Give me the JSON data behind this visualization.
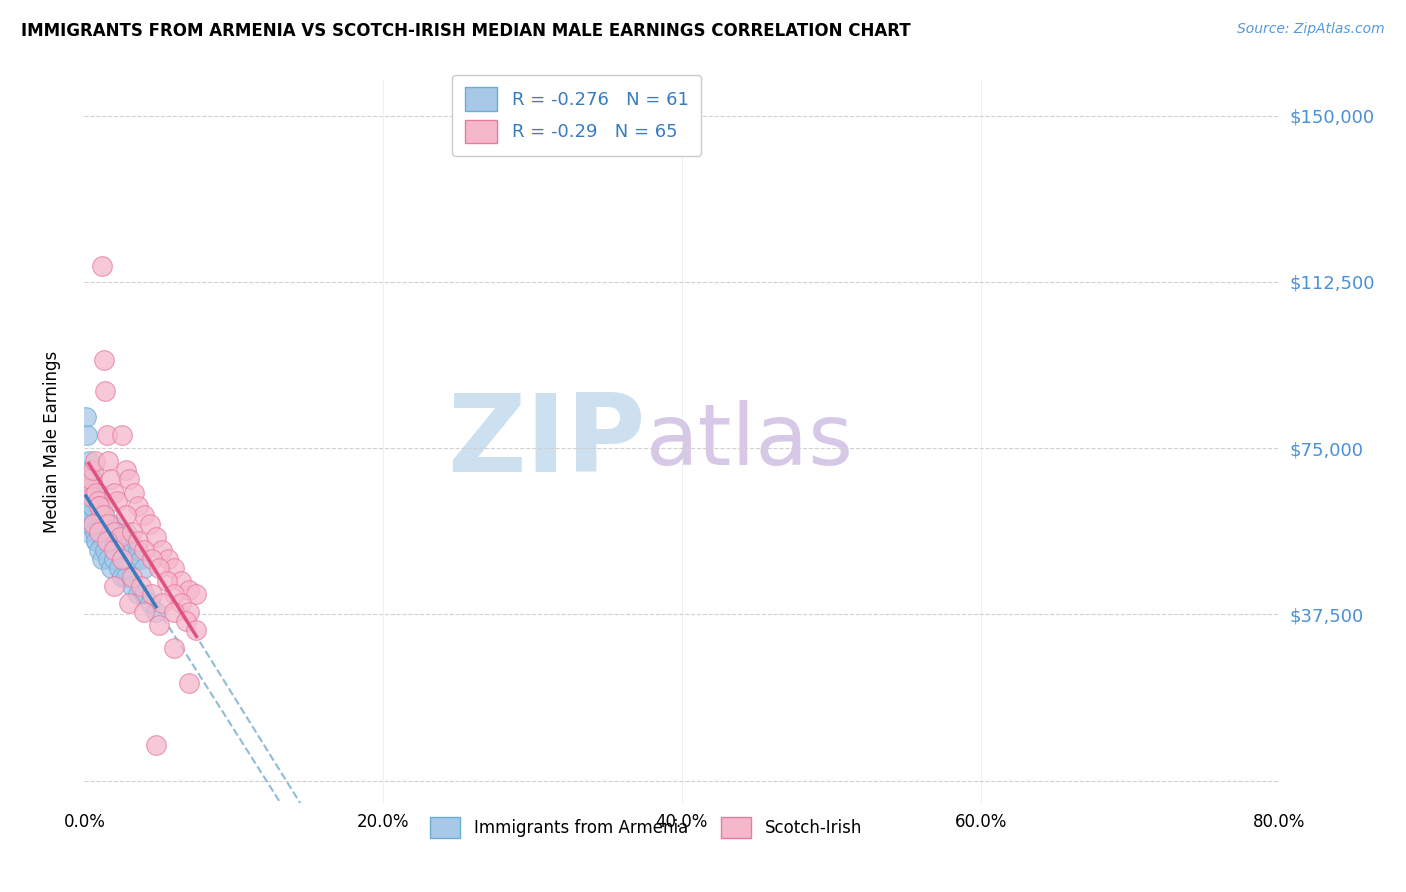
{
  "title": "IMMIGRANTS FROM ARMENIA VS SCOTCH-IRISH MEDIAN MALE EARNINGS CORRELATION CHART",
  "source": "Source: ZipAtlas.com",
  "ylabel": "Median Male Earnings",
  "y_ticks": [
    0,
    37500,
    75000,
    112500,
    150000
  ],
  "y_tick_labels": [
    "",
    "$37,500",
    "$75,000",
    "$112,500",
    "$150,000"
  ],
  "x_min": 0.0,
  "x_max": 0.8,
  "y_min": -5000,
  "y_max": 158000,
  "armenia_R": -0.276,
  "armenia_N": 61,
  "scotch_R": -0.29,
  "scotch_N": 65,
  "armenia_color": "#a8c8e8",
  "armenia_edge_color": "#6aaed6",
  "armenia_line_color": "#3a7bbf",
  "scotch_color": "#f5b8cb",
  "scotch_edge_color": "#e87a9f",
  "scotch_line_color": "#e05080",
  "trend_dash_color": "#90bcd8",
  "watermark_zip_color": "#cce0f0",
  "watermark_atlas_color": "#d8c8e8",
  "background_color": "#ffffff",
  "grid_color": "#d0d0d0",
  "armenia_scatter_x": [
    0.001,
    0.002,
    0.002,
    0.003,
    0.003,
    0.004,
    0.004,
    0.005,
    0.005,
    0.006,
    0.006,
    0.007,
    0.007,
    0.008,
    0.008,
    0.009,
    0.01,
    0.01,
    0.011,
    0.012,
    0.012,
    0.013,
    0.014,
    0.015,
    0.016,
    0.017,
    0.018,
    0.02,
    0.021,
    0.022,
    0.024,
    0.025,
    0.027,
    0.028,
    0.03,
    0.032,
    0.034,
    0.036,
    0.038,
    0.04,
    0.002,
    0.003,
    0.004,
    0.005,
    0.006,
    0.007,
    0.008,
    0.01,
    0.012,
    0.014,
    0.016,
    0.018,
    0.02,
    0.023,
    0.025,
    0.028,
    0.032,
    0.036,
    0.04,
    0.044,
    0.048
  ],
  "armenia_scatter_y": [
    82000,
    78000,
    68000,
    72000,
    64000,
    70000,
    62000,
    68000,
    60000,
    66000,
    58000,
    64000,
    56000,
    62000,
    54000,
    60000,
    64000,
    56000,
    58000,
    62000,
    54000,
    60000,
    56000,
    58000,
    54000,
    56000,
    58000,
    52000,
    56000,
    54000,
    52000,
    55000,
    53000,
    56000,
    54000,
    52000,
    50000,
    52000,
    50000,
    48000,
    56000,
    58000,
    60000,
    62000,
    58000,
    56000,
    54000,
    52000,
    50000,
    52000,
    50000,
    48000,
    50000,
    48000,
    46000,
    46000,
    44000,
    42000,
    42000,
    40000,
    38000
  ],
  "scotch_scatter_x": [
    0.003,
    0.004,
    0.005,
    0.006,
    0.007,
    0.008,
    0.009,
    0.01,
    0.011,
    0.012,
    0.013,
    0.014,
    0.015,
    0.016,
    0.018,
    0.02,
    0.022,
    0.025,
    0.028,
    0.03,
    0.033,
    0.036,
    0.04,
    0.044,
    0.048,
    0.052,
    0.056,
    0.06,
    0.065,
    0.07,
    0.075,
    0.01,
    0.013,
    0.016,
    0.02,
    0.024,
    0.028,
    0.032,
    0.036,
    0.04,
    0.045,
    0.05,
    0.055,
    0.06,
    0.065,
    0.07,
    0.006,
    0.01,
    0.015,
    0.02,
    0.025,
    0.032,
    0.038,
    0.045,
    0.052,
    0.06,
    0.068,
    0.075,
    0.02,
    0.03,
    0.04,
    0.05,
    0.06,
    0.07,
    0.048
  ],
  "scotch_scatter_y": [
    66000,
    68000,
    64000,
    70000,
    72000,
    65000,
    63000,
    62000,
    60000,
    116000,
    95000,
    88000,
    78000,
    72000,
    68000,
    65000,
    63000,
    78000,
    70000,
    68000,
    65000,
    62000,
    60000,
    58000,
    55000,
    52000,
    50000,
    48000,
    45000,
    43000,
    42000,
    62000,
    60000,
    58000,
    56000,
    55000,
    60000,
    56000,
    54000,
    52000,
    50000,
    48000,
    45000,
    42000,
    40000,
    38000,
    58000,
    56000,
    54000,
    52000,
    50000,
    46000,
    44000,
    42000,
    40000,
    38000,
    36000,
    34000,
    44000,
    40000,
    38000,
    35000,
    30000,
    22000,
    8000
  ]
}
